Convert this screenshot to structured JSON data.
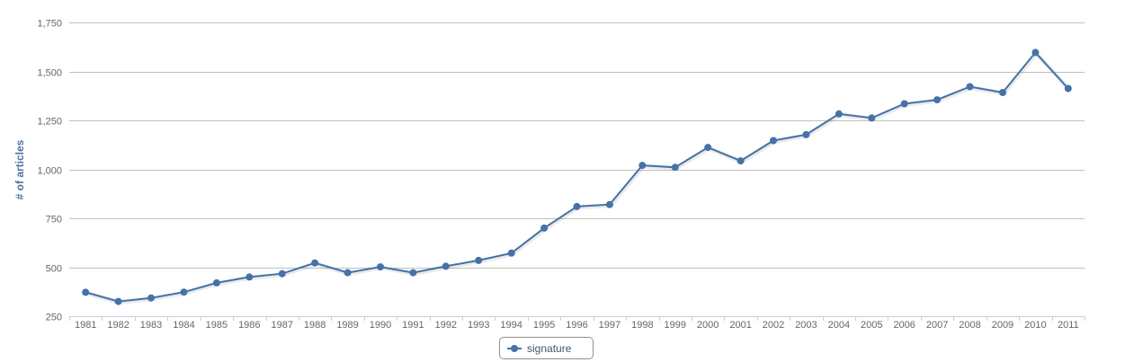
{
  "chart_data": {
    "type": "line",
    "title": "",
    "xlabel": "",
    "ylabel": "# of articles",
    "categories": [
      "1981",
      "1982",
      "1983",
      "1984",
      "1985",
      "1986",
      "1987",
      "1988",
      "1989",
      "1990",
      "1991",
      "1992",
      "1993",
      "1994",
      "1995",
      "1996",
      "1997",
      "1998",
      "1999",
      "2000",
      "2001",
      "2002",
      "2003",
      "2004",
      "2005",
      "2006",
      "2007",
      "2008",
      "2009",
      "2010",
      "2011"
    ],
    "y_ticks": [
      "250",
      "500",
      "750",
      "1,000",
      "1,250",
      "1,500",
      "1,750"
    ],
    "ylim": [
      250,
      1750
    ],
    "grid": true,
    "legend_position": "bottom-center",
    "series": [
      {
        "name": "signature",
        "color": "#4572a7",
        "values": [
          372,
          325,
          343,
          373,
          420,
          450,
          467,
          522,
          472,
          502,
          472,
          505,
          535,
          572,
          700,
          810,
          820,
          1020,
          1010,
          1112,
          1043,
          1147,
          1177,
          1283,
          1262,
          1335,
          1355,
          1422,
          1392,
          1597,
          1413
        ]
      }
    ]
  }
}
